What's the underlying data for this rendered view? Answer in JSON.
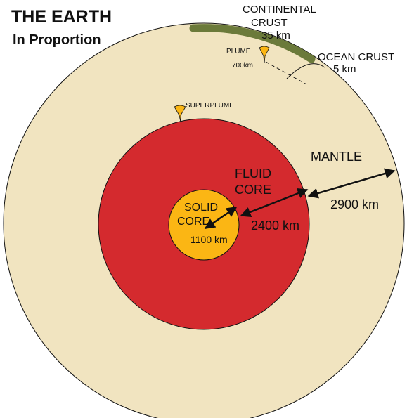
{
  "header": {
    "title": "THE EARTH",
    "subtitle": "In Proportion"
  },
  "labels": {
    "continental_crust": [
      "CONTINENTAL",
      "CRUST",
      "35 km"
    ],
    "ocean_crust": [
      "OCEAN CRUST",
      "5 km"
    ],
    "plume": [
      "PLUME",
      "700km"
    ],
    "superplume": "SUPERPLUME",
    "mantle": [
      "MANTLE",
      "2900 km"
    ],
    "fluid_core": [
      "FLUID",
      "CORE",
      "2400 km"
    ],
    "solid_core": [
      "SOLID",
      "CORE",
      "1100 km"
    ]
  }
}
